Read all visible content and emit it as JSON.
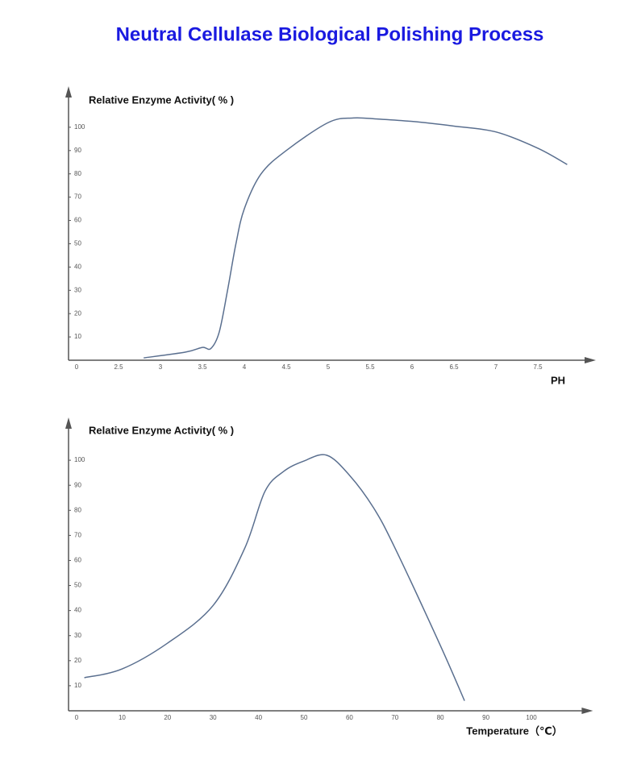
{
  "title": "Neutral Cellulase Biological Polishing Process",
  "chart_data": [
    {
      "type": "line",
      "ylabel": "Relative Enzyme Activity( % )",
      "xlabel": "PH",
      "x": [
        2.8,
        3.3,
        3.5,
        3.6,
        3.7,
        3.8,
        3.9,
        4.0,
        4.2,
        4.5,
        5.0,
        5.3,
        5.6,
        6.0,
        6.5,
        7.0,
        7.5,
        7.85
      ],
      "values": [
        1,
        3.5,
        5.5,
        5,
        12,
        30,
        50,
        65,
        80,
        90,
        102,
        104,
        103.5,
        102.5,
        100.5,
        98,
        91,
        84
      ],
      "color": "#5a6f8f",
      "xlim": [
        0,
        8
      ],
      "xticks": [
        0,
        2.5,
        3,
        3.5,
        4,
        4.5,
        5,
        5.5,
        6,
        6.5,
        7,
        7.5
      ],
      "ylim": [
        0,
        110
      ],
      "yticks": [
        10,
        20,
        30,
        40,
        50,
        60,
        70,
        80,
        90,
        100
      ]
    },
    {
      "type": "line",
      "ylabel": "Relative Enzyme Activity( % )",
      "xlabel": "Temperature（℃）",
      "x": [
        1.7,
        10,
        20,
        30,
        37,
        41.4,
        45.5,
        50,
        55,
        60,
        65.3,
        70,
        80,
        85.3
      ],
      "values": [
        13.2,
        16.7,
        27,
        42,
        65,
        87.5,
        95.5,
        99.7,
        102,
        94,
        81,
        65,
        26,
        4
      ],
      "color": "#5a6f8f",
      "xlim": [
        0,
        110
      ],
      "xticks": [
        0,
        10,
        20,
        30,
        40,
        50,
        60,
        70,
        80,
        90,
        100
      ],
      "ylim": [
        0,
        110
      ],
      "yticks": [
        10,
        20,
        30,
        40,
        50,
        60,
        70,
        80,
        90,
        100
      ]
    }
  ]
}
